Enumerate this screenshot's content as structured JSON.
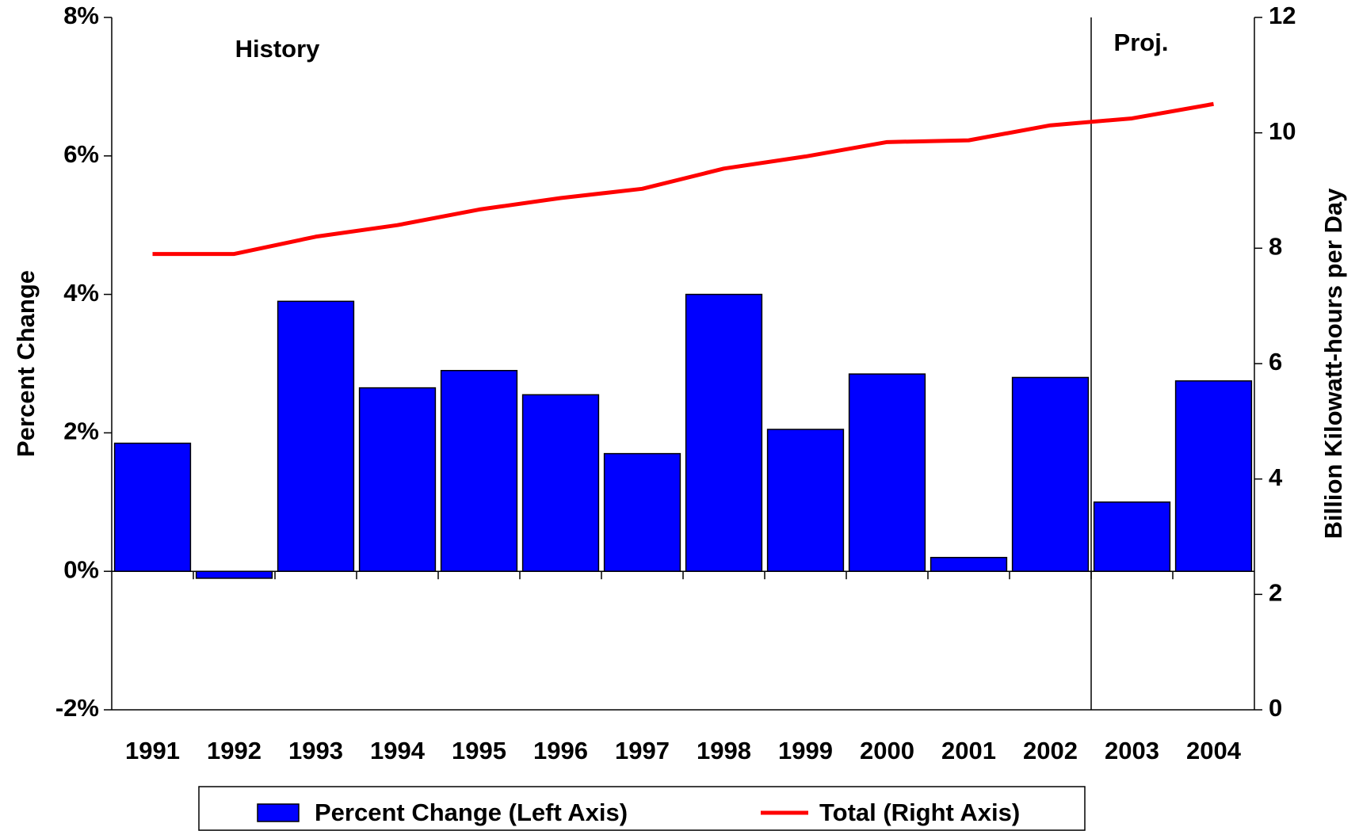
{
  "chart_data": {
    "type": "bar",
    "categories": [
      "1991",
      "1992",
      "1993",
      "1994",
      "1995",
      "1996",
      "1997",
      "1998",
      "1999",
      "2000",
      "2001",
      "2002",
      "2003",
      "2004"
    ],
    "series": [
      {
        "name": "Percent Change (Left Axis)",
        "type": "bar",
        "color": "#0000ff",
        "values": [
          1.85,
          -0.1,
          3.9,
          2.65,
          2.9,
          2.55,
          1.7,
          4.0,
          2.05,
          2.85,
          0.2,
          2.8,
          1.0,
          2.75
        ]
      },
      {
        "name": "Total (Right Axis)",
        "type": "line",
        "axis": "y2",
        "color": "#ff0000",
        "values": [
          7.9,
          7.9,
          8.2,
          8.4,
          8.67,
          8.87,
          9.03,
          9.38,
          9.59,
          9.84,
          9.87,
          10.13,
          10.25,
          10.5
        ]
      }
    ],
    "ylabel": "Percent Change",
    "y2label": "Billion Kilowatt-hours per Day",
    "ylim": [
      -2,
      8
    ],
    "yticks": [
      {
        "value": -2,
        "label": "-2%"
      },
      {
        "value": 0,
        "label": "0%"
      },
      {
        "value": 2,
        "label": "2%"
      },
      {
        "value": 4,
        "label": "4%"
      },
      {
        "value": 6,
        "label": "6%"
      },
      {
        "value": 8,
        "label": "8%"
      }
    ],
    "y2lim": [
      0,
      12
    ],
    "y2ticks": [
      0,
      2,
      4,
      6,
      8,
      10,
      12
    ],
    "annotations": [
      "History",
      "Proj."
    ],
    "legend": "bottom"
  }
}
